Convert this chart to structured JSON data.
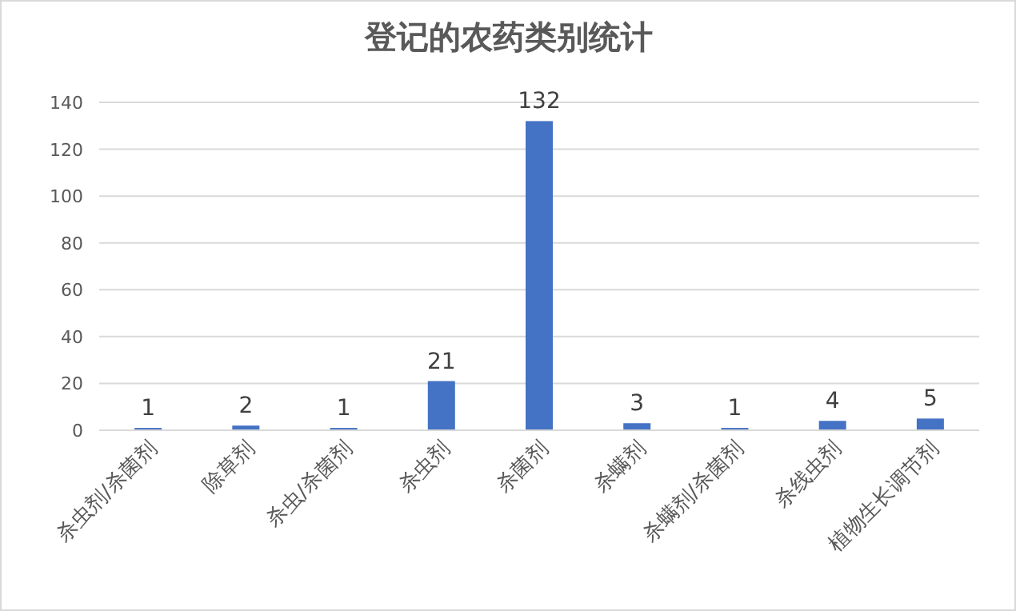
{
  "chart_data": {
    "type": "bar",
    "title": "登记的农药类别统计",
    "categories": [
      "杀虫剂/杀菌剂",
      "除草剂",
      "杀虫/杀菌剂",
      "杀虫剂",
      "杀菌剂",
      "杀螨剂",
      "杀螨剂/杀菌剂",
      "杀线虫剂",
      "植物生长调节剂"
    ],
    "values": [
      1,
      2,
      1,
      21,
      132,
      3,
      1,
      4,
      5
    ],
    "color": "#4472c4",
    "ylim": [
      0,
      140
    ],
    "yticks": [
      0,
      20,
      40,
      60,
      80,
      100,
      120,
      140
    ],
    "grid": "y",
    "data_labels": true
  }
}
